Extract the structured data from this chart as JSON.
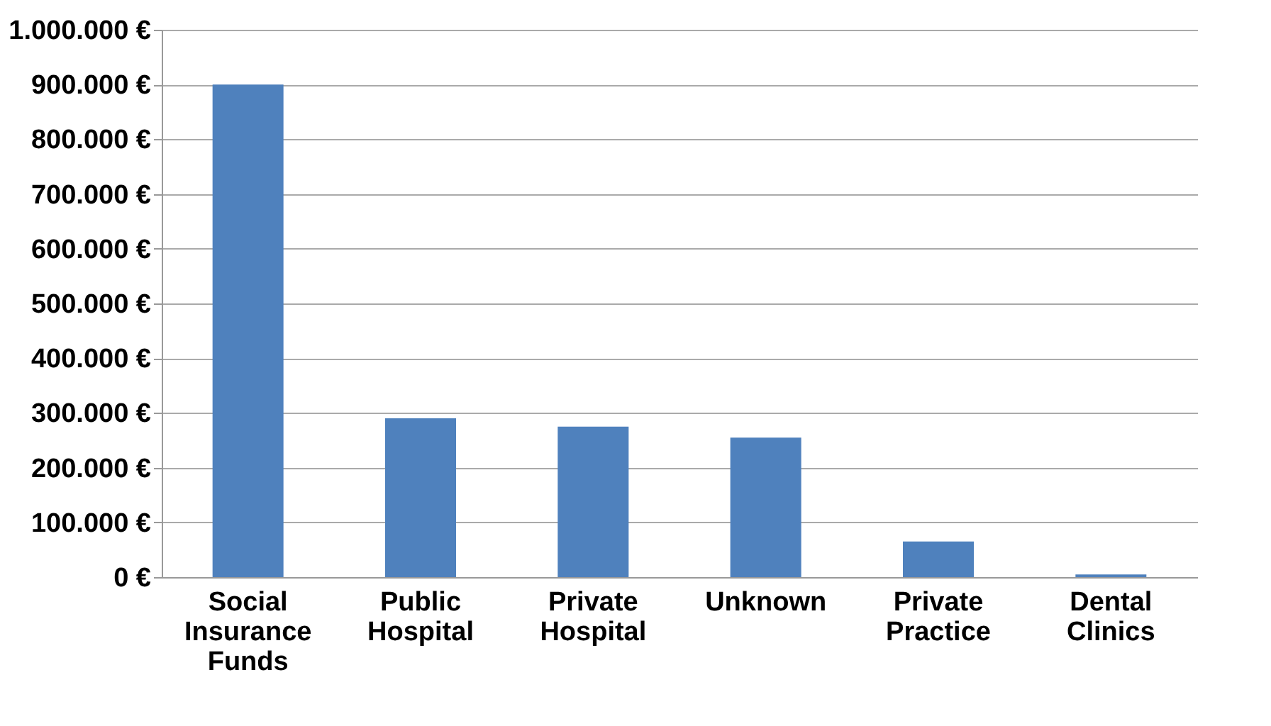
{
  "chart_data": {
    "type": "bar",
    "categories": [
      "Social Insurance Funds",
      "Public Hospital",
      "Private Hospital",
      "Unknown",
      "Private Practice",
      "Dental Clinics"
    ],
    "values": [
      900000,
      290000,
      275000,
      255000,
      65000,
      5000
    ],
    "color": "#4f81bd",
    "ylim": [
      0,
      1000000
    ],
    "yticks": [
      {
        "value": 0,
        "label": "0 €"
      },
      {
        "value": 100000,
        "label": "100.000 €"
      },
      {
        "value": 200000,
        "label": "200.000 €"
      },
      {
        "value": 300000,
        "label": "300.000 €"
      },
      {
        "value": 400000,
        "label": "400.000 €"
      },
      {
        "value": 500000,
        "label": "500.000 €"
      },
      {
        "value": 600000,
        "label": "600.000 €"
      },
      {
        "value": 700000,
        "label": "700.000 €"
      },
      {
        "value": 800000,
        "label": "800.000 €"
      },
      {
        "value": 900000,
        "label": "900.000 €"
      },
      {
        "value": 1000000,
        "label": "1.000.000 €"
      }
    ],
    "grid": "y"
  }
}
